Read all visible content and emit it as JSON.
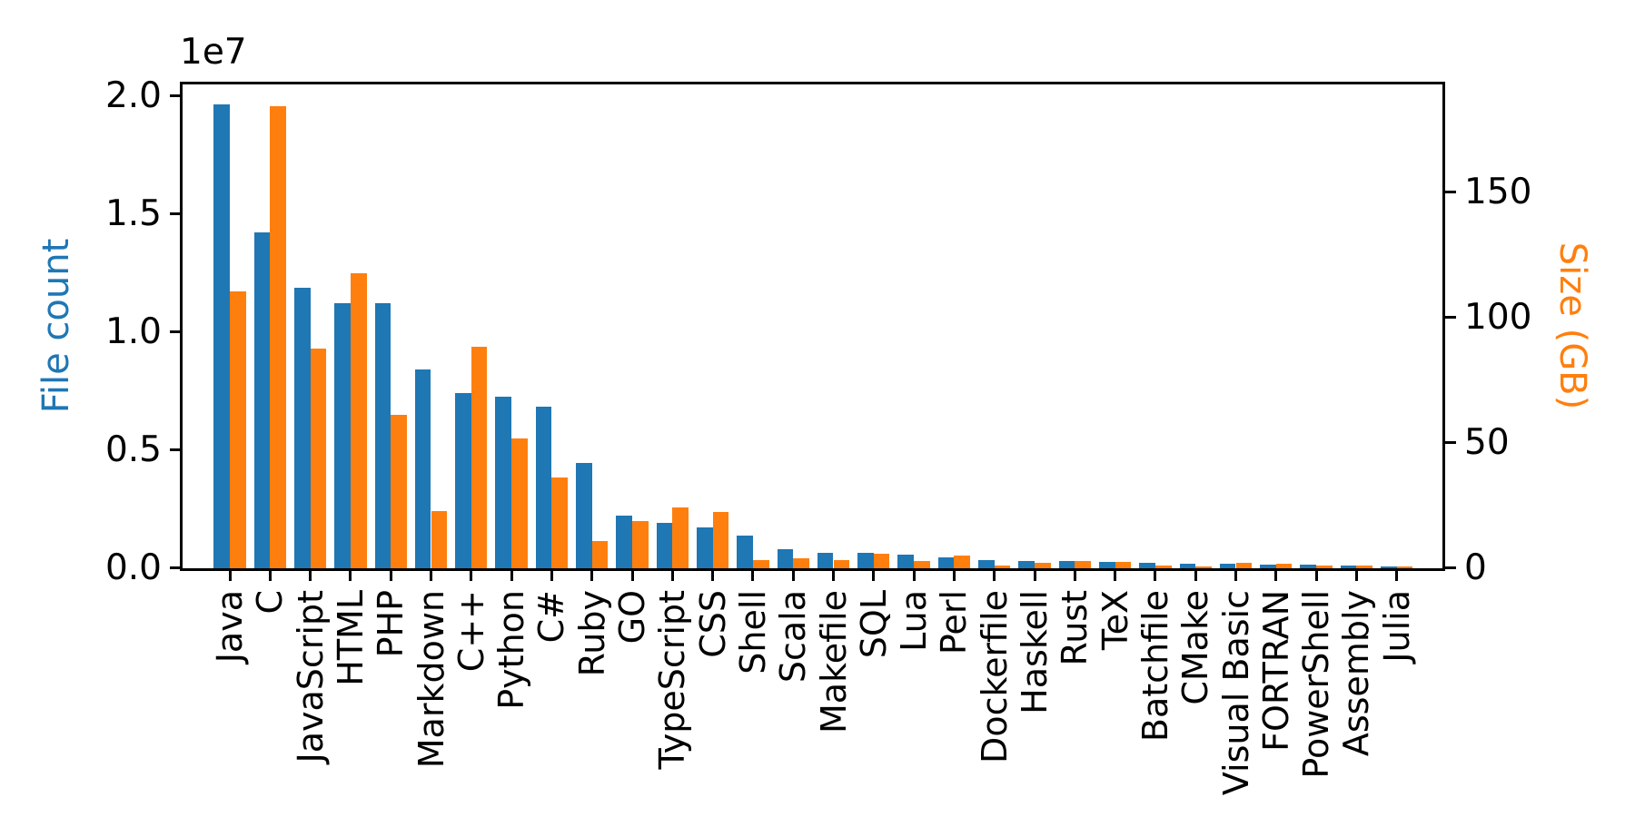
{
  "figure": {
    "background": "#ffffff",
    "text_color": "#000000",
    "offset_label": "1e7",
    "left_axis": {
      "label": "File count",
      "label_color": "#1f77b4",
      "tick_labels": [
        "0.0",
        "0.5",
        "1.0",
        "1.5",
        "2.0"
      ],
      "tick_values": [
        0,
        5000000,
        10000000,
        15000000,
        20000000
      ]
    },
    "right_axis": {
      "label": "Size (GB)",
      "label_color": "#ff7f0e",
      "tick_labels": [
        "0",
        "50",
        "100",
        "150"
      ],
      "tick_values": [
        0,
        50,
        100,
        150
      ]
    }
  },
  "chart_data": {
    "type": "bar",
    "title": "",
    "xlabel": "",
    "ylabel_left": "File count",
    "ylabel_right": "Size (GB)",
    "ylim_left": [
      0,
      20600000
    ],
    "ylim_right": [
      0,
      192
    ],
    "grid": false,
    "legend": null,
    "categories": [
      "Java",
      "C",
      "JavaScript",
      "HTML",
      "PHP",
      "Markdown",
      "C++",
      "Python",
      "C#",
      "Ruby",
      "GO",
      "TypeScript",
      "CSS",
      "Shell",
      "Scala",
      "Makefile",
      "SQL",
      "Lua",
      "Perl",
      "Dockerfile",
      "Haskell",
      "Rust",
      "TeX",
      "Batchfile",
      "CMake",
      "Visual Basic",
      "FORTRAN",
      "PowerShell",
      "Assembly",
      "Julia"
    ],
    "series": [
      {
        "name": "File count",
        "axis": "left",
        "color": "#1f77b4",
        "values": [
          19600000,
          14200000,
          11850000,
          11200000,
          11200000,
          8400000,
          7400000,
          7250000,
          6800000,
          4430000,
          2200000,
          1900000,
          1700000,
          1350000,
          760000,
          620000,
          630000,
          540000,
          440000,
          320000,
          270000,
          270000,
          220000,
          210000,
          150000,
          140000,
          110000,
          110000,
          70000,
          50000
        ]
      },
      {
        "name": "Size (GB)",
        "axis": "right",
        "color": "#ff7f0e",
        "values": [
          110,
          184,
          87.5,
          117.5,
          61,
          22.5,
          88,
          51.5,
          36,
          10.5,
          18.5,
          24,
          22,
          3.0,
          3.7,
          2.8,
          5.3,
          2.5,
          4.6,
          0.9,
          1.9,
          2.6,
          2.2,
          0.7,
          0.5,
          1.9,
          1.6,
          0.7,
          0.8,
          0.3
        ]
      }
    ]
  }
}
